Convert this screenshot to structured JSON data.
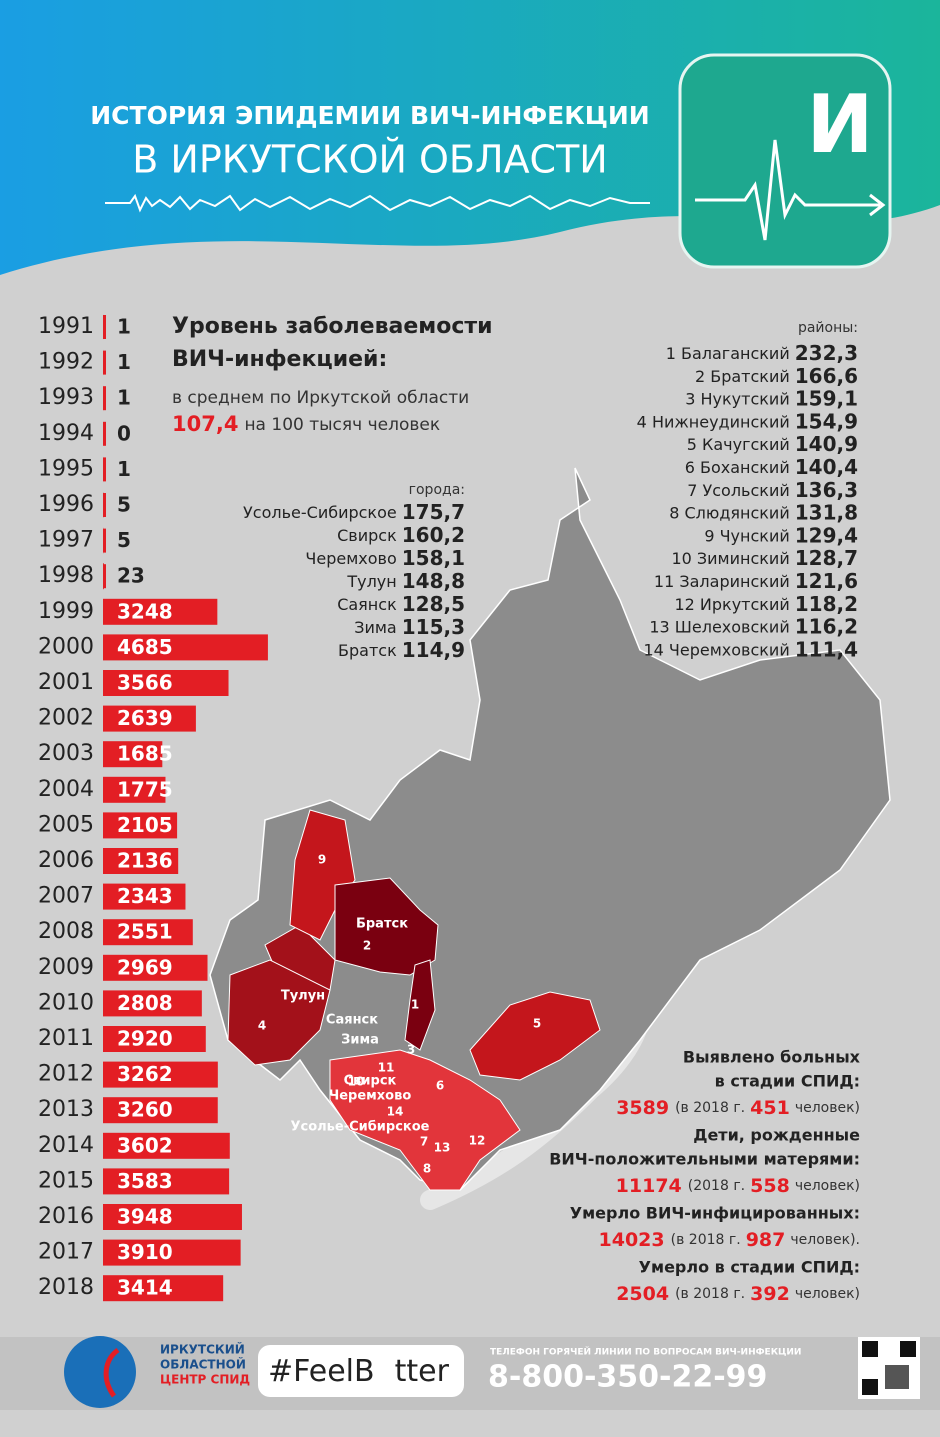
{
  "header": {
    "title_line1": "ИСТОРИЯ ЭПИДЕМИИ ВИЧ-ИНФЕКЦИИ",
    "title_line2": "В ИРКУТСКОЙ ОБЛАСТИ",
    "logo_letter": "И"
  },
  "chart_data": {
    "type": "bar",
    "orientation": "horizontal",
    "color": "#e31e24",
    "categories": [
      "1991",
      "1992",
      "1993",
      "1994",
      "1995",
      "1996",
      "1997",
      "1998",
      "1999",
      "2000",
      "2001",
      "2002",
      "2003",
      "2004",
      "2005",
      "2006",
      "2007",
      "2008",
      "2009",
      "2010",
      "2011",
      "2012",
      "2013",
      "2014",
      "2015",
      "2016",
      "2017",
      "2018"
    ],
    "values": [
      1,
      1,
      1,
      0,
      1,
      5,
      5,
      23,
      3248,
      4685,
      3566,
      2639,
      1685,
      1775,
      2105,
      2136,
      2343,
      2551,
      2969,
      2808,
      2920,
      3262,
      3260,
      3602,
      3583,
      3948,
      3910,
      3414
    ]
  },
  "incidence": {
    "title_line1": "Уровень заболеваемости",
    "title_line2": "ВИЧ-инфекцией:",
    "average_text": "в среднем по Иркутской области",
    "average_value": "107,4",
    "average_unit": "на 100 тысяч человек"
  },
  "cities": {
    "label": "города:",
    "rows": [
      [
        "Усолье-Сибирское",
        "175,7"
      ],
      [
        "Свирск",
        "160,2"
      ],
      [
        "Черемхово",
        "158,1"
      ],
      [
        "Тулун",
        "148,8"
      ],
      [
        "Саянск",
        "128,5"
      ],
      [
        "Зима",
        "115,3"
      ],
      [
        "Братск",
        "114,9"
      ]
    ]
  },
  "districts": {
    "label": "районы:",
    "rows": [
      [
        "1 Балаганский",
        "232,3"
      ],
      [
        "2 Братский",
        "166,6"
      ],
      [
        "3 Нукутский",
        "159,1"
      ],
      [
        "4 Нижнеудинский",
        "154,9"
      ],
      [
        "5 Качугский",
        "140,9"
      ],
      [
        "6 Боханский",
        "140,4"
      ],
      [
        "7 Усольский",
        "136,3"
      ],
      [
        "8 Слюдянский",
        "131,8"
      ],
      [
        "9 Чунский",
        "129,4"
      ],
      [
        "10 Зиминский",
        "128,7"
      ],
      [
        "11 Заларинский",
        "121,6"
      ],
      [
        "12 Иркутский",
        "118,2"
      ],
      [
        "13 Шелеховский",
        "116,2"
      ],
      [
        "14 Черемховский",
        "111,4"
      ]
    ]
  },
  "map": {
    "labels": [
      "9",
      "2",
      "1",
      "4",
      "5",
      "3",
      "10",
      "11",
      "6",
      "14",
      "7",
      "13",
      "12",
      "8",
      "Братск",
      "Тулун",
      "Саянск",
      "Зима",
      "Свирск",
      "Черемхово",
      "Усолье-Сибирское"
    ]
  },
  "stats": [
    {
      "lines": [
        "Выявлено больных",
        "в стадии СПИД:"
      ],
      "total": "3589",
      "note_pre": "(в 2018 г.",
      "note_value": "451",
      "note_post": "человек)"
    },
    {
      "lines": [
        "Дети, рожденные",
        "ВИЧ-положительными матерями:"
      ],
      "total": "11174",
      "note_pre": "(2018 г.",
      "note_value": "558",
      "note_post": "человек)"
    },
    {
      "lines": [
        "Умерло ВИЧ-инфицированных:"
      ],
      "total": "14023",
      "note_pre": "(в 2018 г.",
      "note_value": "987",
      "note_post": "человек)."
    },
    {
      "lines": [
        "Умерло в стадии СПИД:"
      ],
      "total": "2504",
      "note_pre": "(в 2018 г.",
      "note_value": "392",
      "note_post": "человек)"
    }
  ],
  "footer": {
    "org_line1": "ИРКУТСКИЙ",
    "org_line2": "ОБЛАСТНОЙ",
    "org_line3": "ЦЕНТР СПИД",
    "hashtag_start": "#FeelB",
    "hashtag_end": "tter",
    "hotline_label": "ТЕЛЕФОН ГОРЯЧЕЙ ЛИНИИ ПО ВОПРОСАМ ВИЧ-ИНФЕКЦИИ",
    "phone": "8-800-350-22-99"
  }
}
